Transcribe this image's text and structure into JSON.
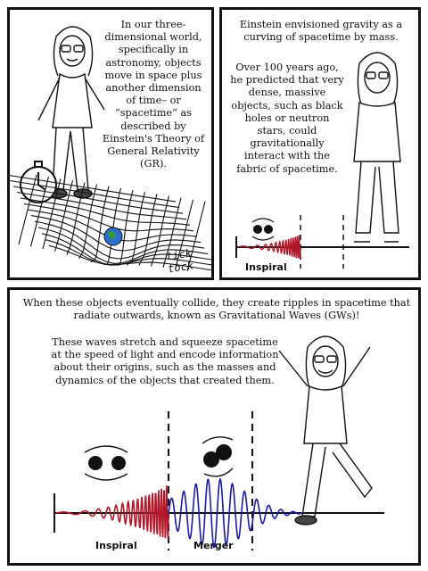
{
  "panel1": {
    "text": "In our three-dimensional world, specifically in astronomy, objects move in space plus another dimension of time– or “spacetime” as described by Einstein's Theory of General Relativity (GR).",
    "sound_effect": "tick tock"
  },
  "panel2": {
    "text_top": "Einstein envisioned gravity as a curving of spacetime by mass.",
    "text_main": "Over 100 years ago, he predicted that very dense, massive objects, such as black holes or neutron stars, could gravitationally interact with the fabric of spacetime.",
    "label_inspiral": "Inspiral"
  },
  "panel3": {
    "text_top": "When these objects eventually collide, they create ripples in spacetime that radiate outwards, known as Gravitational Waves (GWs)!",
    "text_main": "These waves stretch and squeeze spacetime at the speed of light and encode information about their origins, such as the masses and dynamics of the objects that created them.",
    "label_inspiral": "Inspiral",
    "label_merger": "Merger"
  },
  "colors": {
    "inspiral_wave": "#b0182a",
    "merger_wave": "#1a1aa8",
    "ink": "#111111"
  }
}
